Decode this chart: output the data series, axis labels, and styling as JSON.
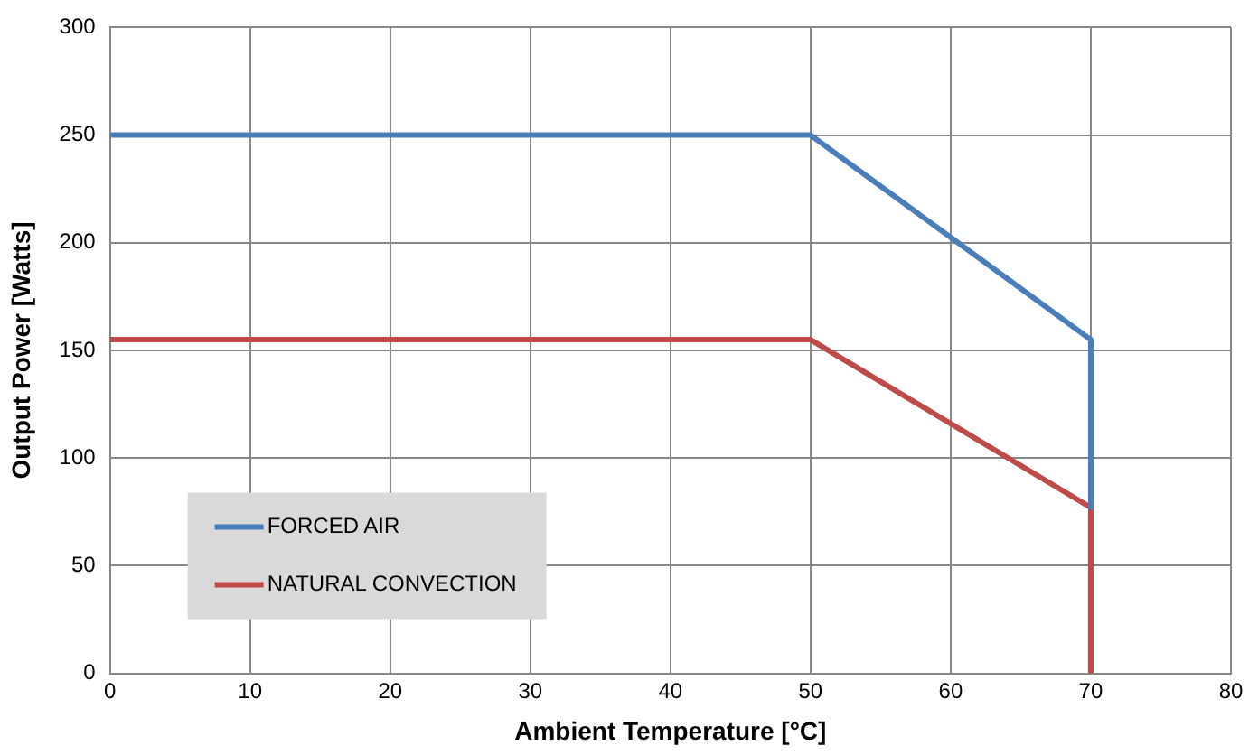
{
  "chart_data": {
    "type": "line",
    "xlabel": "Ambient Temperature [°C]",
    "ylabel": "Output Power [Watts]",
    "xlim": [
      0,
      80
    ],
    "xticks": [
      0,
      10,
      20,
      30,
      40,
      50,
      60,
      70,
      80
    ],
    "ylim": [
      0,
      300
    ],
    "yticks": [
      0,
      50,
      100,
      150,
      200,
      250,
      300
    ],
    "grid": true,
    "legend": "bottom left",
    "marker": "none",
    "line_style": "solid",
    "series": [
      {
        "name": "FORCED AIR",
        "color": "#4a7ebb",
        "x": [
          0,
          50,
          70,
          70
        ],
        "values": [
          250,
          250,
          155,
          77
        ]
      },
      {
        "name": "NATURAL CONVECTION",
        "color": "#be4b48",
        "x": [
          0,
          50,
          70,
          70
        ],
        "values": [
          155,
          155,
          77,
          0
        ]
      }
    ]
  }
}
